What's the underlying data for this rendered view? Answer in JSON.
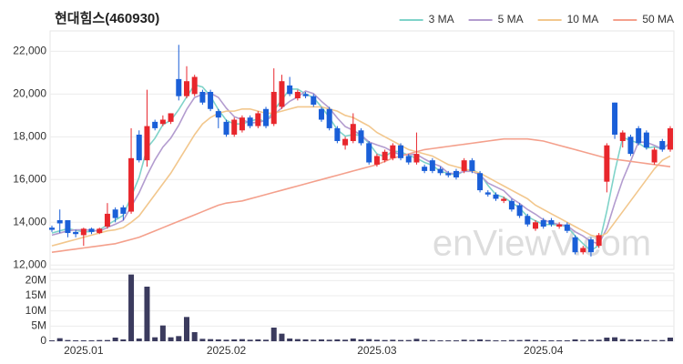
{
  "chart_data": {
    "type": "candlestick",
    "title": "현대힘스(460930)",
    "watermark": "enViewV.com",
    "categories": [
      null,
      null,
      null,
      null,
      "2025.01",
      null,
      null,
      null,
      null,
      null,
      null,
      null,
      null,
      null,
      null,
      null,
      null,
      null,
      null,
      null,
      null,
      null,
      "2025.02",
      null,
      null,
      null,
      null,
      null,
      null,
      null,
      null,
      null,
      null,
      null,
      null,
      null,
      null,
      null,
      null,
      null,
      null,
      "2025.03",
      null,
      null,
      null,
      null,
      null,
      null,
      null,
      null,
      null,
      null,
      null,
      null,
      null,
      null,
      null,
      null,
      null,
      null,
      null,
      null,
      "2025.04",
      null,
      null,
      null,
      null,
      null,
      null,
      null,
      null,
      null,
      null,
      null,
      null,
      null,
      null,
      null,
      null
    ],
    "open": [
      13750,
      14100,
      14100,
      13550,
      13400,
      13700,
      13500,
      13800,
      14600,
      14700,
      14500,
      18100,
      16900,
      18700,
      18600,
      18700,
      20700,
      19900,
      20000,
      20100,
      20100,
      19200,
      18700,
      18100,
      18300,
      18900,
      18500,
      19300,
      18600,
      19400,
      20400,
      19800,
      20000,
      19900,
      19300,
      19300,
      18400,
      17600,
      17800,
      18300,
      17700,
      16700,
      16900,
      17000,
      17600,
      17100,
      16800,
      16600,
      16900,
      16500,
      16300,
      16400,
      16400,
      16900,
      16300,
      15400,
      15300,
      15000,
      15000,
      14800,
      14300,
      13700,
      14100,
      14100,
      13800,
      13900,
      13300,
      12600,
      13200,
      12900,
      15900,
      19600,
      17800,
      18000,
      18400,
      18200,
      16800,
      17800,
      17400
    ],
    "high": [
      13850,
      14600,
      14100,
      13650,
      13750,
      13750,
      13750,
      14900,
      14700,
      14800,
      18400,
      18300,
      20200,
      18800,
      19000,
      19100,
      22300,
      21300,
      20900,
      20200,
      20200,
      19300,
      18800,
      18900,
      19000,
      19000,
      19200,
      19400,
      21200,
      20900,
      20800,
      20200,
      20100,
      20000,
      19400,
      19400,
      18500,
      18000,
      19100,
      18400,
      17800,
      17200,
      17400,
      17700,
      17700,
      17200,
      18200,
      16700,
      17000,
      16600,
      16400,
      16500,
      17000,
      17000,
      16400,
      15500,
      15400,
      15200,
      15100,
      14900,
      14400,
      14100,
      14200,
      14200,
      14000,
      14000,
      13400,
      12900,
      13300,
      13500,
      17700,
      19600,
      18300,
      18100,
      18500,
      18300,
      17500,
      17900,
      18500
    ],
    "low": [
      13550,
      13500,
      13300,
      13300,
      12900,
      13450,
      13450,
      13700,
      14000,
      14100,
      14400,
      16800,
      16600,
      18300,
      18500,
      18600,
      19700,
      19800,
      19900,
      19500,
      19200,
      18400,
      18000,
      18000,
      18200,
      18400,
      18400,
      18400,
      18500,
      19300,
      19900,
      19700,
      19800,
      19400,
      18700,
      18300,
      17700,
      17400,
      17700,
      17600,
      16700,
      16600,
      16800,
      16900,
      16900,
      16700,
      16700,
      16300,
      16300,
      16200,
      16100,
      16000,
      16300,
      16300,
      15400,
      15200,
      15000,
      14900,
      14500,
      14200,
      13800,
      13600,
      13700,
      13800,
      13700,
      13500,
      12500,
      12500,
      12400,
      12800,
      15400,
      17900,
      17500,
      17100,
      17600,
      17400,
      16700,
      17300,
      17300
    ],
    "close": [
      13650,
      13950,
      13500,
      13450,
      13700,
      13550,
      13700,
      14400,
      14200,
      14400,
      17000,
      16900,
      18500,
      18400,
      18800,
      19100,
      19900,
      20600,
      20800,
      19600,
      19300,
      18900,
      18100,
      18800,
      18900,
      18500,
      19100,
      18500,
      20100,
      20600,
      20000,
      20100,
      19900,
      19500,
      18800,
      18400,
      17800,
      17900,
      18600,
      17700,
      16800,
      17100,
      17300,
      17600,
      17000,
      16800,
      17200,
      16400,
      16400,
      16300,
      16200,
      16100,
      16900,
      16400,
      15500,
      15300,
      15100,
      15100,
      14600,
      14300,
      13900,
      14000,
      13800,
      13900,
      13900,
      13600,
      12600,
      12800,
      12600,
      13400,
      17600,
      18100,
      18200,
      17200,
      17700,
      17500,
      17400,
      17400,
      18400
    ],
    "up_color": "#e8262c",
    "down_color": "#1a5fd8",
    "ylim": [
      11800,
      22950
    ],
    "yticks": [
      {
        "value": 12000,
        "label": "12,000"
      },
      {
        "value": 14000,
        "label": "14,000"
      },
      {
        "value": 16000,
        "label": "16,000"
      },
      {
        "value": 18000,
        "label": "18,000"
      },
      {
        "value": 20000,
        "label": "20,000"
      },
      {
        "value": 22000,
        "label": "22,000"
      }
    ],
    "grid": true,
    "legend": "top-right",
    "series": [
      {
        "name": "3 MA",
        "color": "#7fd3c9",
        "values": [
          13500,
          13600,
          13700,
          13630,
          13550,
          13570,
          13650,
          13880,
          14100,
          14330,
          15200,
          16100,
          17470,
          17930,
          18570,
          18770,
          19270,
          19870,
          20430,
          20330,
          19900,
          19270,
          18770,
          18600,
          18600,
          18730,
          18830,
          18700,
          19230,
          19730,
          20230,
          20230,
          20000,
          19830,
          19400,
          18900,
          18330,
          18030,
          18100,
          18070,
          17700,
          17200,
          17070,
          17330,
          17300,
          17130,
          17000,
          16800,
          16670,
          16370,
          16300,
          16200,
          16400,
          16470,
          16270,
          15730,
          15300,
          15170,
          14930,
          14670,
          14270,
          14070,
          13900,
          13900,
          13870,
          13800,
          13370,
          13000,
          12670,
          12930,
          14530,
          16370,
          17970,
          17830,
          17700,
          17470,
          17530,
          17430,
          17730
        ]
      },
      {
        "name": "5 MA",
        "color": "#b39ccf",
        "values": [
          13400,
          13500,
          13600,
          13650,
          13650,
          13630,
          13580,
          13760,
          13910,
          14090,
          14740,
          15380,
          16200,
          16920,
          17520,
          17940,
          18540,
          19280,
          19840,
          19980,
          20040,
          19840,
          19340,
          18940,
          18800,
          18640,
          18680,
          18760,
          19020,
          19360,
          19660,
          19860,
          20140,
          20020,
          19660,
          19340,
          18880,
          18480,
          18300,
          18080,
          17760,
          17620,
          17500,
          17300,
          17160,
          17160,
          17180,
          16960,
          16760,
          16620,
          16300,
          16280,
          16380,
          16380,
          16220,
          15840,
          15660,
          15480,
          15120,
          14880,
          14600,
          14380,
          14120,
          13980,
          13900,
          13840,
          13560,
          13360,
          13100,
          13000,
          13720,
          14900,
          15980,
          16860,
          17760,
          17740,
          17600,
          17440,
          17680
        ]
      },
      {
        "name": "10 MA",
        "color": "#f2c78d",
        "values": [
          12900,
          13000,
          13100,
          13200,
          13300,
          13400,
          13500,
          13600,
          13650,
          13750,
          14000,
          14300,
          14800,
          15300,
          15800,
          16300,
          16900,
          17500,
          18100,
          18600,
          18900,
          19100,
          19200,
          19200,
          19300,
          19300,
          19200,
          19100,
          19100,
          19200,
          19300,
          19400,
          19400,
          19400,
          19400,
          19300,
          19200,
          19000,
          18900,
          18700,
          18500,
          18200,
          18000,
          17800,
          17600,
          17400,
          17300,
          17200,
          17100,
          16900,
          16700,
          16600,
          16500,
          16400,
          16300,
          16100,
          15900,
          15700,
          15500,
          15300,
          15100,
          14800,
          14600,
          14400,
          14200,
          14000,
          13800,
          13600,
          13400,
          13300,
          13500,
          14000,
          14500,
          15000,
          15500,
          16000,
          16500,
          16900,
          17100
        ]
      },
      {
        "name": "50 MA",
        "color": "#f4a08c",
        "values": [
          12600,
          12650,
          12700,
          12750,
          12800,
          12850,
          12900,
          12950,
          13000,
          13100,
          13200,
          13300,
          13450,
          13600,
          13750,
          13900,
          14050,
          14200,
          14350,
          14500,
          14650,
          14800,
          14900,
          14950,
          15000,
          15100,
          15200,
          15300,
          15400,
          15500,
          15600,
          15700,
          15800,
          15900,
          16000,
          16100,
          16200,
          16300,
          16400,
          16500,
          16600,
          16700,
          16850,
          17000,
          17100,
          17200,
          17300,
          17400,
          17450,
          17500,
          17550,
          17600,
          17650,
          17700,
          17750,
          17800,
          17850,
          17900,
          17900,
          17900,
          17900,
          17850,
          17800,
          17700,
          17600,
          17500,
          17400,
          17300,
          17200,
          17100,
          17000,
          16950,
          16900,
          16850,
          16800,
          16750,
          16700,
          16650,
          16600
        ]
      }
    ],
    "volume": {
      "color": "#3b3b5e",
      "ylim": [
        0,
        22500000
      ],
      "yticks": [
        0,
        {
          "value": 5000000,
          "label": "5M"
        },
        {
          "value": 10000000,
          "label": "10M"
        },
        {
          "value": 15000000,
          "label": "15M"
        },
        {
          "value": 20000000,
          "label": "20M"
        }
      ],
      "values": [
        300000,
        1000000,
        400000,
        300000,
        300000,
        300000,
        400000,
        400000,
        1200000,
        600000,
        22000000,
        900000,
        18000000,
        1300000,
        5200000,
        1300000,
        1700000,
        8000000,
        3000000,
        800000,
        700000,
        600000,
        500000,
        600000,
        700000,
        500000,
        600000,
        500000,
        4500000,
        2500000,
        900000,
        700000,
        600000,
        500000,
        600000,
        500000,
        600000,
        500000,
        900000,
        600000,
        700000,
        500000,
        400000,
        500000,
        400000,
        400000,
        800000,
        400000,
        400000,
        300000,
        300000,
        300000,
        500000,
        400000,
        600000,
        400000,
        300000,
        300000,
        400000,
        400000,
        500000,
        400000,
        300000,
        300000,
        300000,
        300000,
        600000,
        400000,
        500000,
        500000,
        1200000,
        1300000,
        700000,
        500000,
        600000,
        400000,
        400000,
        400000,
        1200000
      ]
    }
  }
}
